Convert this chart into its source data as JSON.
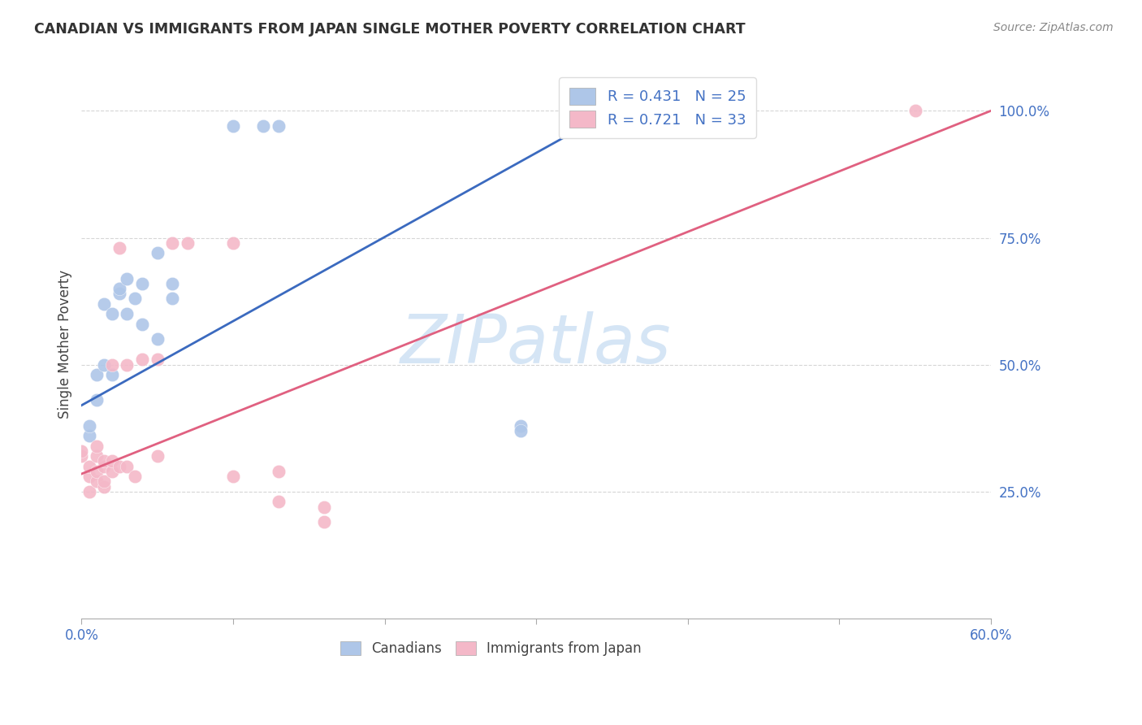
{
  "title": "CANADIAN VS IMMIGRANTS FROM JAPAN SINGLE MOTHER POVERTY CORRELATION CHART",
  "source": "Source: ZipAtlas.com",
  "ylabel": "Single Mother Poverty",
  "xlim": [
    0.0,
    0.6
  ],
  "ylim": [
    0.0,
    1.08
  ],
  "yticks": [
    0.25,
    0.5,
    0.75,
    1.0
  ],
  "ytick_labels": [
    "25.0%",
    "50.0%",
    "75.0%",
    "100.0%"
  ],
  "xtick_positions": [
    0.0,
    0.1,
    0.2,
    0.3,
    0.4,
    0.5,
    0.6
  ],
  "legend1_R": "R = 0.431",
  "legend1_N": "N = 25",
  "legend2_R": "R = 0.721",
  "legend2_N": "N = 33",
  "canadian_color": "#aec6e8",
  "japan_color": "#f4b8c8",
  "canadian_line_color": "#3b6abf",
  "japan_line_color": "#e06080",
  "axis_tick_color": "#4472c4",
  "watermark_text": "ZIPatlas",
  "watermark_color": "#d5e5f5",
  "canadians_x": [
    0.005,
    0.005,
    0.01,
    0.01,
    0.015,
    0.015,
    0.02,
    0.02,
    0.025,
    0.025,
    0.03,
    0.03,
    0.035,
    0.04,
    0.04,
    0.05,
    0.05,
    0.06,
    0.06,
    0.1,
    0.12,
    0.13,
    0.29,
    0.29,
    0.35
  ],
  "canadians_y": [
    0.36,
    0.38,
    0.43,
    0.48,
    0.5,
    0.62,
    0.48,
    0.6,
    0.64,
    0.65,
    0.6,
    0.67,
    0.63,
    0.58,
    0.66,
    0.55,
    0.72,
    0.63,
    0.66,
    0.97,
    0.97,
    0.97,
    0.38,
    0.37,
    1.0
  ],
  "japan_x": [
    0.0,
    0.0,
    0.005,
    0.005,
    0.005,
    0.01,
    0.01,
    0.01,
    0.01,
    0.015,
    0.015,
    0.015,
    0.015,
    0.02,
    0.02,
    0.02,
    0.025,
    0.025,
    0.03,
    0.03,
    0.035,
    0.04,
    0.05,
    0.05,
    0.06,
    0.07,
    0.1,
    0.1,
    0.13,
    0.13,
    0.16,
    0.16,
    0.55
  ],
  "japan_y": [
    0.32,
    0.33,
    0.25,
    0.28,
    0.3,
    0.27,
    0.29,
    0.32,
    0.34,
    0.26,
    0.27,
    0.3,
    0.31,
    0.29,
    0.31,
    0.5,
    0.3,
    0.73,
    0.3,
    0.5,
    0.28,
    0.51,
    0.32,
    0.51,
    0.74,
    0.74,
    0.74,
    0.28,
    0.23,
    0.29,
    0.19,
    0.22,
    1.0
  ],
  "blue_line_x0": 0.0,
  "blue_line_y0": 0.42,
  "blue_line_x1": 0.35,
  "blue_line_y1": 1.0,
  "pink_line_x0": 0.0,
  "pink_line_y0": 0.285,
  "pink_line_x1": 0.6,
  "pink_line_y1": 1.0
}
